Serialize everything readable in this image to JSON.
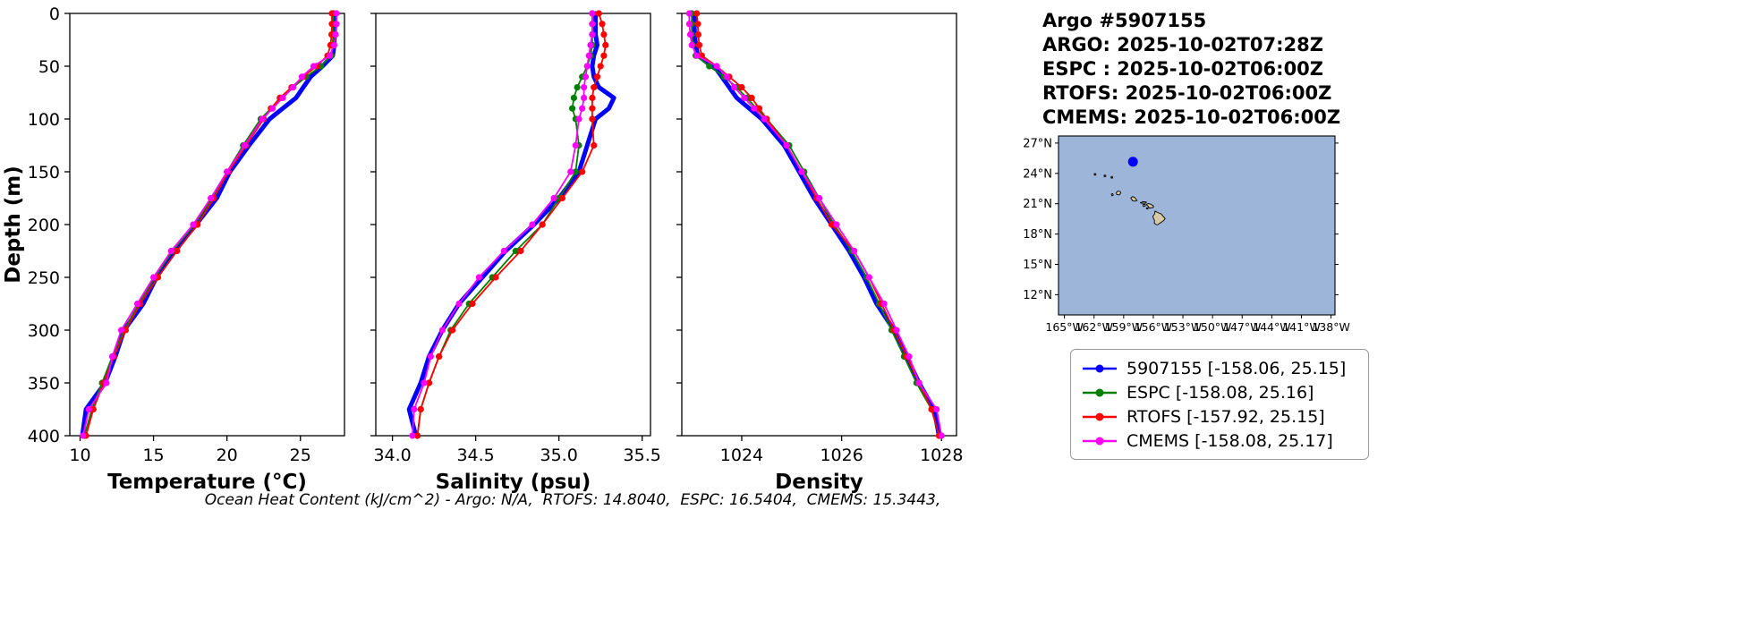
{
  "info_block": {
    "lines": [
      "Argo #5907155",
      "ARGO: 2025-10-02T07:28Z",
      "ESPC : 2025-10-02T06:00Z",
      "RTOFS: 2025-10-02T06:00Z",
      "CMEMS: 2025-10-02T06:00Z"
    ]
  },
  "caption": "Ocean Heat Content (kJ/cm^2) - Argo: N/A,  RTOFS: 14.8040,  ESPC: 16.5404,  CMEMS: 15.3443,",
  "ylabel": "Depth (m)",
  "chart_data": [
    {
      "type": "line",
      "orientation": "depth-profile",
      "xlabel": "Temperature (°C)",
      "ylabel": "Depth (m)",
      "xlim": [
        9.3,
        28.0
      ],
      "ylim": [
        0,
        400
      ],
      "xticks": [
        10,
        15,
        20,
        25
      ],
      "xticklabels": [
        "10",
        "15",
        "20",
        "25"
      ],
      "yticks": [
        0,
        50,
        100,
        150,
        200,
        250,
        300,
        350,
        400
      ],
      "yticklabels": [
        "0",
        "50",
        "100",
        "150",
        "200",
        "250",
        "300",
        "350",
        "400"
      ],
      "show_ytick_labels": true,
      "depth": [
        0,
        10,
        20,
        30,
        40,
        50,
        60,
        70,
        80,
        90,
        100,
        125,
        150,
        175,
        200,
        225,
        250,
        275,
        300,
        325,
        350,
        375,
        400
      ],
      "series": [
        {
          "name": "5907155",
          "color": "#0000ff",
          "lw": 5,
          "marker": false,
          "values": [
            27.35,
            27.35,
            27.33,
            27.3,
            27.2,
            26.5,
            25.7,
            25.2,
            24.7,
            23.8,
            22.9,
            21.5,
            20.2,
            19.3,
            17.9,
            16.4,
            15.2,
            14.3,
            13.0,
            12.4,
            11.7,
            10.4,
            10.15
          ]
        },
        {
          "name": "ESPC",
          "color": "#008000",
          "lw": 1.8,
          "marker": true,
          "values": [
            27.25,
            27.25,
            27.24,
            27.22,
            27.1,
            26.4,
            25.4,
            24.5,
            23.7,
            23.0,
            22.3,
            21.1,
            20.0,
            19.0,
            17.8,
            16.3,
            15.1,
            14.0,
            13.0,
            12.2,
            11.5,
            10.8,
            10.3
          ]
        },
        {
          "name": "RTOFS",
          "color": "#ff0000",
          "lw": 1.8,
          "marker": true,
          "values": [
            27.15,
            27.15,
            27.12,
            27.05,
            26.85,
            26.1,
            25.2,
            24.4,
            23.6,
            23.0,
            22.5,
            21.3,
            20.1,
            19.1,
            18.0,
            16.6,
            15.3,
            14.1,
            13.1,
            12.3,
            11.6,
            10.9,
            10.4
          ]
        },
        {
          "name": "CMEMS",
          "color": "#ff00ff",
          "lw": 1.8,
          "marker": true,
          "values": [
            27.45,
            27.45,
            27.4,
            27.3,
            27.0,
            25.9,
            25.1,
            24.5,
            23.8,
            23.1,
            22.4,
            21.2,
            20.0,
            18.9,
            17.7,
            16.2,
            15.0,
            13.9,
            12.8,
            12.2,
            11.8,
            10.6,
            10.2
          ]
        }
      ]
    },
    {
      "type": "line",
      "orientation": "depth-profile",
      "xlabel": "Salinity (psu)",
      "xlim": [
        33.9,
        35.55
      ],
      "ylim": [
        0,
        400
      ],
      "xticks": [
        34.0,
        34.5,
        35.0,
        35.5
      ],
      "xticklabels": [
        "34.0",
        "34.5",
        "35.0",
        "35.5"
      ],
      "yticks": [
        0,
        50,
        100,
        150,
        200,
        250,
        300,
        350,
        400
      ],
      "yticklabels": [
        "0",
        "50",
        "100",
        "150",
        "200",
        "250",
        "300",
        "350",
        "400"
      ],
      "show_ytick_labels": false,
      "depth": [
        0,
        10,
        20,
        30,
        40,
        50,
        60,
        70,
        80,
        90,
        100,
        125,
        150,
        175,
        200,
        225,
        250,
        275,
        300,
        325,
        350,
        375,
        400
      ],
      "series": [
        {
          "name": "5907155",
          "color": "#0000ff",
          "lw": 5,
          "marker": false,
          "values": [
            35.22,
            35.22,
            35.22,
            35.23,
            35.21,
            35.2,
            35.21,
            35.24,
            35.33,
            35.3,
            35.22,
            35.17,
            35.12,
            35.0,
            34.85,
            34.68,
            34.54,
            34.4,
            34.3,
            34.22,
            34.17,
            34.1,
            34.14
          ]
        },
        {
          "name": "ESPC",
          "color": "#008000",
          "lw": 1.8,
          "marker": true,
          "values": [
            35.2,
            35.2,
            35.2,
            35.2,
            35.19,
            35.17,
            35.14,
            35.11,
            35.09,
            35.08,
            35.1,
            35.12,
            35.1,
            35.0,
            34.9,
            34.74,
            34.6,
            34.46,
            34.35,
            34.28,
            34.22,
            34.17,
            34.15
          ]
        },
        {
          "name": "RTOFS",
          "color": "#ff0000",
          "lw": 1.8,
          "marker": true,
          "values": [
            35.24,
            35.26,
            35.27,
            35.28,
            35.27,
            35.25,
            35.23,
            35.21,
            35.2,
            35.2,
            35.2,
            35.21,
            35.14,
            35.02,
            34.9,
            34.77,
            34.62,
            34.48,
            34.36,
            34.28,
            34.22,
            34.17,
            34.15
          ]
        },
        {
          "name": "CMEMS",
          "color": "#ff00ff",
          "lw": 1.8,
          "marker": true,
          "values": [
            35.2,
            35.2,
            35.2,
            35.19,
            35.18,
            35.17,
            35.16,
            35.15,
            35.15,
            35.14,
            35.12,
            35.1,
            35.07,
            34.97,
            34.84,
            34.67,
            34.52,
            34.4,
            34.3,
            34.23,
            34.19,
            34.13,
            34.12
          ]
        }
      ]
    },
    {
      "type": "line",
      "orientation": "depth-profile",
      "xlabel": "Density",
      "xlim": [
        1022.8,
        1028.3
      ],
      "ylim": [
        0,
        400
      ],
      "xticks": [
        1024,
        1026,
        1028
      ],
      "xticklabels": [
        "1024",
        "1026",
        "1028"
      ],
      "yticks": [
        0,
        50,
        100,
        150,
        200,
        250,
        300,
        350,
        400
      ],
      "yticklabels": [
        "0",
        "50",
        "100",
        "150",
        "200",
        "250",
        "300",
        "350",
        "400"
      ],
      "show_ytick_labels": false,
      "depth": [
        0,
        10,
        20,
        30,
        40,
        50,
        60,
        70,
        80,
        90,
        100,
        125,
        150,
        175,
        200,
        225,
        250,
        275,
        300,
        325,
        350,
        375,
        400
      ],
      "series": [
        {
          "name": "5907155",
          "color": "#0000ff",
          "lw": 5,
          "marker": false,
          "values": [
            1023.05,
            1023.05,
            1023.06,
            1023.08,
            1023.12,
            1023.45,
            1023.6,
            1023.75,
            1023.9,
            1024.15,
            1024.4,
            1024.85,
            1025.15,
            1025.45,
            1025.8,
            1026.15,
            1026.45,
            1026.7,
            1027.05,
            1027.3,
            1027.55,
            1027.85,
            1027.95
          ]
        },
        {
          "name": "ESPC",
          "color": "#008000",
          "lw": 1.8,
          "marker": true,
          "values": [
            1023.0,
            1023.0,
            1023.0,
            1023.02,
            1023.08,
            1023.35,
            1023.65,
            1023.9,
            1024.1,
            1024.3,
            1024.5,
            1024.95,
            1025.25,
            1025.55,
            1025.85,
            1026.2,
            1026.5,
            1026.75,
            1027.0,
            1027.25,
            1027.5,
            1027.8,
            1027.95
          ]
        },
        {
          "name": "RTOFS",
          "color": "#ff0000",
          "lw": 1.8,
          "marker": true,
          "values": [
            1023.1,
            1023.12,
            1023.13,
            1023.15,
            1023.2,
            1023.5,
            1023.75,
            1024.0,
            1024.2,
            1024.35,
            1024.5,
            1024.9,
            1025.2,
            1025.5,
            1025.8,
            1026.25,
            1026.55,
            1026.8,
            1027.05,
            1027.3,
            1027.55,
            1027.8,
            1027.95
          ]
        },
        {
          "name": "CMEMS",
          "color": "#ff00ff",
          "lw": 1.8,
          "marker": true,
          "values": [
            1022.95,
            1022.95,
            1022.97,
            1023.0,
            1023.1,
            1023.5,
            1023.7,
            1023.85,
            1024.05,
            1024.25,
            1024.45,
            1024.9,
            1025.2,
            1025.55,
            1025.9,
            1026.25,
            1026.55,
            1026.85,
            1027.1,
            1027.35,
            1027.55,
            1027.9,
            1028.0
          ]
        }
      ]
    }
  ],
  "map": {
    "ocean_color": "#9db5d9",
    "land_color": "#d8c9a5",
    "extent": {
      "lon_min": -165.6,
      "lon_max": -137.6,
      "lat_min": 10.0,
      "lat_max": 27.7
    },
    "lat_ticks": [
      {
        "value": 27,
        "label": "27°N"
      },
      {
        "value": 24,
        "label": "24°N"
      },
      {
        "value": 21,
        "label": "21°N"
      },
      {
        "value": 18,
        "label": "18°N"
      },
      {
        "value": 15,
        "label": "15°N"
      },
      {
        "value": 12,
        "label": "12°N"
      }
    ],
    "lon_ticks": [
      {
        "value": -165,
        "label": "165°W"
      },
      {
        "value": -162,
        "label": "162°W"
      },
      {
        "value": -159,
        "label": "159°W"
      },
      {
        "value": -156,
        "label": "156°W"
      },
      {
        "value": -153,
        "label": "153°W"
      },
      {
        "value": -150,
        "label": "150°W"
      },
      {
        "value": -147,
        "label": "147°W"
      },
      {
        "value": -144,
        "label": "144°W"
      },
      {
        "value": -141,
        "label": "141°W"
      },
      {
        "value": -138,
        "label": "138°W"
      }
    ],
    "float_marker": {
      "lon": -158.06,
      "lat": 25.15,
      "color": "#0000ff"
    },
    "islets": [
      {
        "lon": -161.9,
        "lat": 23.9
      },
      {
        "lon": -160.9,
        "lat": 23.75
      },
      {
        "lon": -160.2,
        "lat": 23.6
      }
    ],
    "islands": [
      {
        "name": "niihau",
        "pts": [
          [
            -160.25,
            21.95
          ],
          [
            -160.1,
            22.0
          ],
          [
            -160.05,
            21.85
          ],
          [
            -160.18,
            21.78
          ]
        ]
      },
      {
        "name": "kauai",
        "pts": [
          [
            -159.75,
            22.1
          ],
          [
            -159.6,
            22.25
          ],
          [
            -159.35,
            22.2
          ],
          [
            -159.3,
            22.05
          ],
          [
            -159.45,
            21.87
          ],
          [
            -159.7,
            21.9
          ]
        ]
      },
      {
        "name": "oahu",
        "pts": [
          [
            -158.28,
            21.58
          ],
          [
            -158.1,
            21.7
          ],
          [
            -157.92,
            21.65
          ],
          [
            -157.65,
            21.32
          ],
          [
            -157.85,
            21.25
          ],
          [
            -158.1,
            21.3
          ]
        ]
      },
      {
        "name": "molokai",
        "pts": [
          [
            -157.3,
            21.1
          ],
          [
            -157.0,
            21.2
          ],
          [
            -156.7,
            21.15
          ],
          [
            -156.75,
            21.05
          ],
          [
            -157.25,
            21.05
          ]
        ]
      },
      {
        "name": "lanai",
        "pts": [
          [
            -157.05,
            20.93
          ],
          [
            -156.85,
            20.95
          ],
          [
            -156.8,
            20.78
          ],
          [
            -157.0,
            20.72
          ]
        ]
      },
      {
        "name": "maui",
        "pts": [
          [
            -156.7,
            20.9
          ],
          [
            -156.5,
            21.02
          ],
          [
            -156.25,
            20.95
          ],
          [
            -155.98,
            20.78
          ],
          [
            -156.0,
            20.62
          ],
          [
            -156.4,
            20.58
          ],
          [
            -156.55,
            20.78
          ]
        ]
      },
      {
        "name": "kahoolawe",
        "pts": [
          [
            -156.7,
            20.58
          ],
          [
            -156.55,
            20.6
          ],
          [
            -156.53,
            20.5
          ],
          [
            -156.65,
            20.48
          ]
        ]
      },
      {
        "name": "hawaii-big-island",
        "pts": [
          [
            -156.06,
            19.73
          ],
          [
            -155.85,
            20.03
          ],
          [
            -155.82,
            20.27
          ],
          [
            -155.55,
            20.13
          ],
          [
            -155.2,
            19.98
          ],
          [
            -154.8,
            19.52
          ],
          [
            -154.95,
            19.33
          ],
          [
            -155.3,
            19.1
          ],
          [
            -155.55,
            18.93
          ],
          [
            -155.68,
            18.92
          ],
          [
            -155.9,
            19.08
          ],
          [
            -155.88,
            19.35
          ]
        ]
      }
    ]
  },
  "legend": {
    "entries": [
      {
        "label": "5907155 [-158.06, 25.15]",
        "color": "#0000ff"
      },
      {
        "label": "ESPC [-158.08, 25.16]",
        "color": "#008000"
      },
      {
        "label": "RTOFS [-157.92, 25.15]",
        "color": "#ff0000"
      },
      {
        "label": "CMEMS [-158.08, 25.17]",
        "color": "#ff00ff"
      }
    ]
  }
}
